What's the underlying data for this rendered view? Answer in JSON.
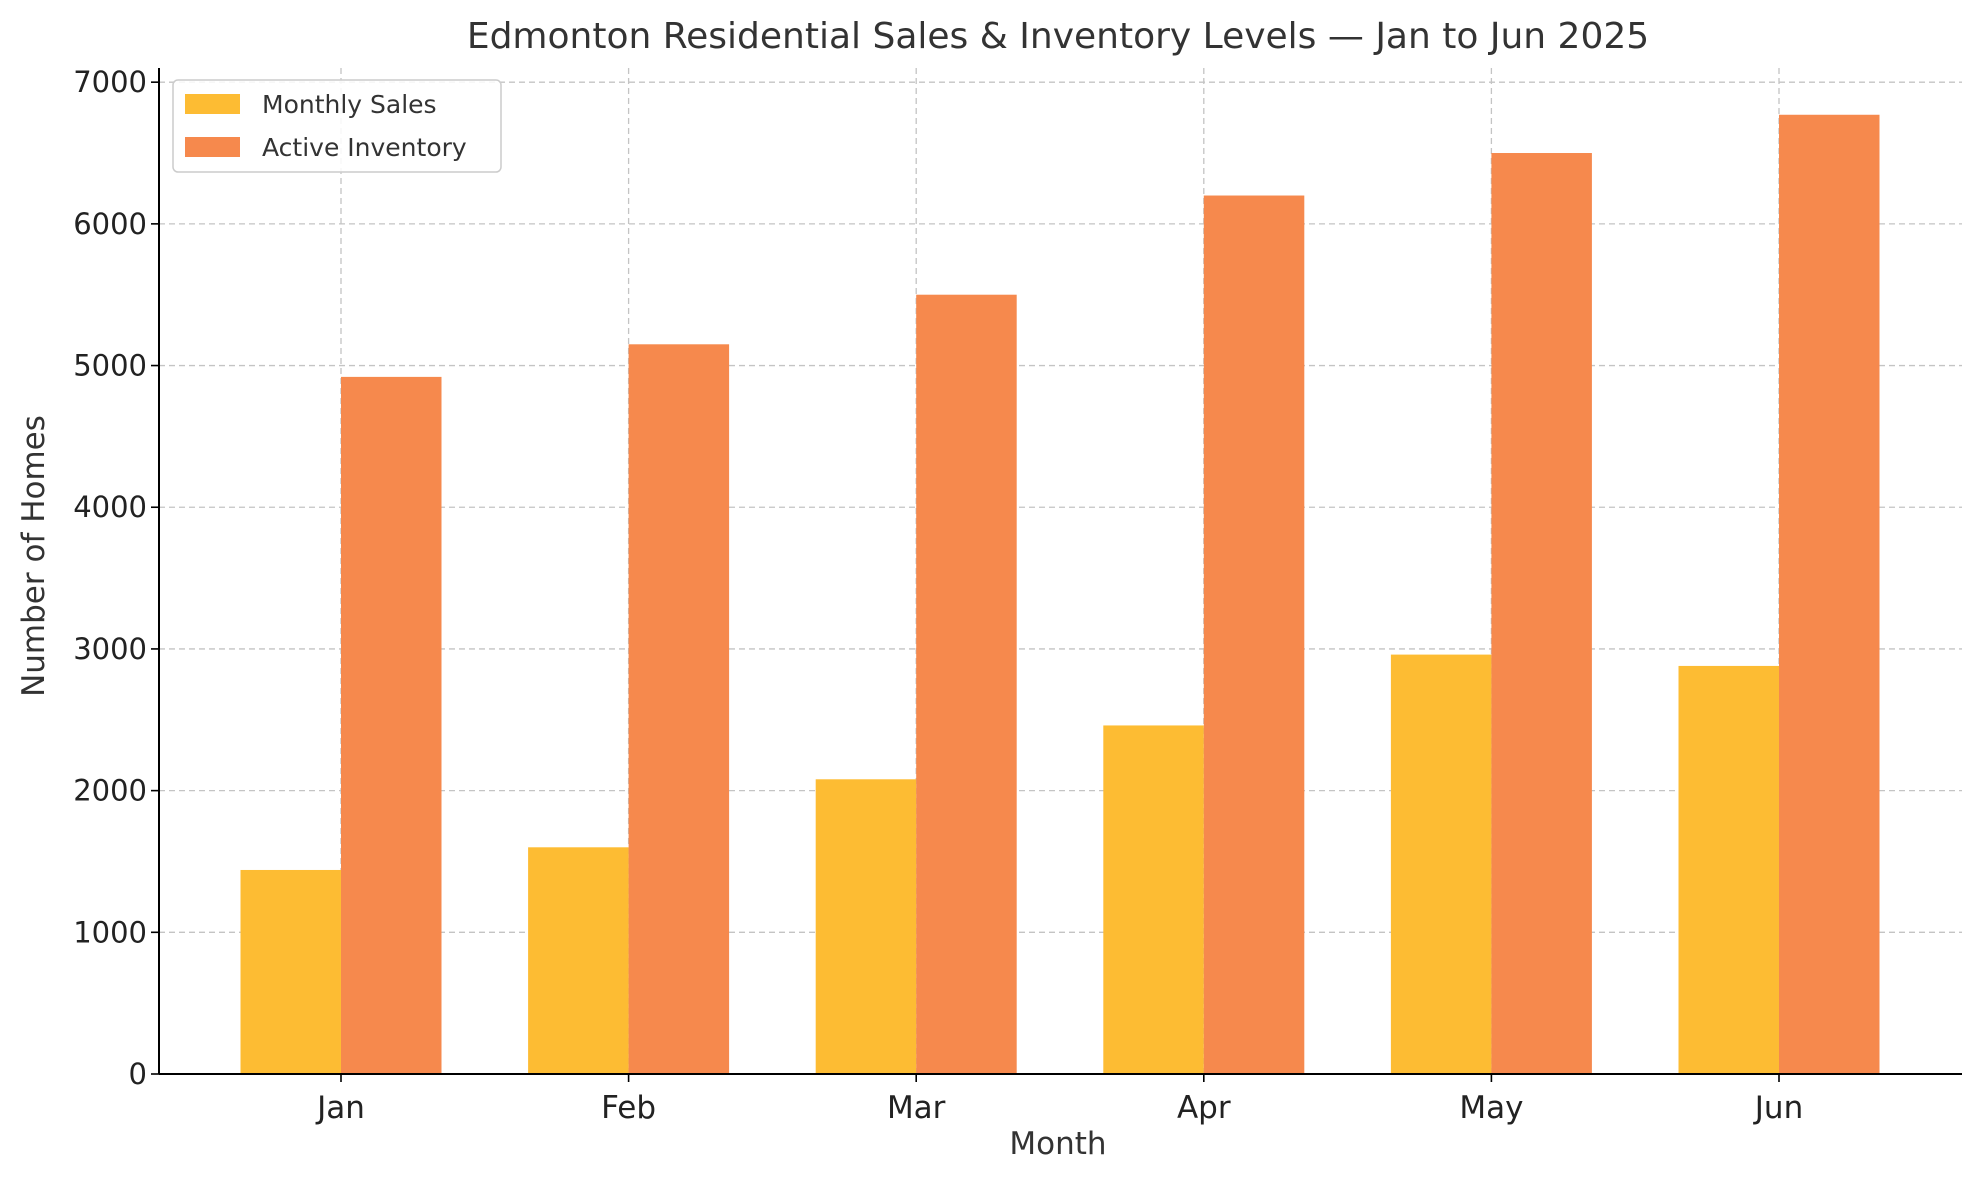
{
  "chart_data": {
    "type": "bar",
    "title": "Edmonton Residential Sales & Inventory Levels — Jan to Jun 2025",
    "xlabel": "Month",
    "ylabel": "Number of Homes",
    "categories": [
      "Jan",
      "Feb",
      "Mar",
      "Apr",
      "May",
      "Jun"
    ],
    "series": [
      {
        "name": "Monthly Sales",
        "color": "#fdbc33",
        "values": [
          1440,
          1600,
          2080,
          2460,
          2960,
          2880
        ]
      },
      {
        "name": "Active Inventory",
        "color": "#f6894d",
        "values": [
          4920,
          5150,
          5500,
          6200,
          6500,
          6770
        ]
      }
    ],
    "ylim": [
      0,
      7100
    ],
    "yticks": [
      0,
      1000,
      2000,
      3000,
      4000,
      5000,
      6000,
      7000
    ],
    "grid": true,
    "legend_position": "top-left"
  }
}
